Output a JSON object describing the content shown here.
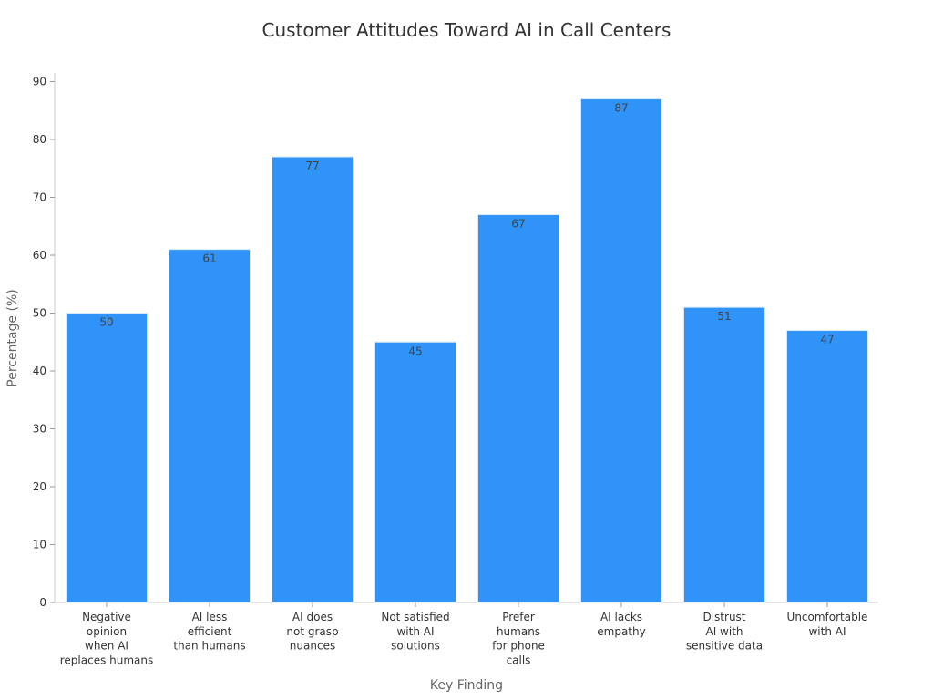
{
  "chart_data": {
    "type": "bar",
    "title": "Customer Attitudes Toward AI in Call Centers",
    "xlabel": "Key Finding",
    "ylabel": "Percentage (%)",
    "ylim": [
      0,
      90
    ],
    "yticks": [
      0,
      10,
      20,
      30,
      40,
      50,
      60,
      70,
      80,
      90
    ],
    "grid": false,
    "categories": [
      [
        "Negative",
        "opinion",
        "when AI",
        "replaces humans"
      ],
      [
        "AI less",
        "efficient",
        "than humans"
      ],
      [
        "AI does",
        "not grasp",
        "nuances"
      ],
      [
        "Not satisfied",
        "with AI",
        "solutions"
      ],
      [
        "Prefer",
        "humans",
        "for phone",
        "calls"
      ],
      [
        "AI lacks",
        "empathy"
      ],
      [
        "Distrust",
        "AI with",
        "sensitive data"
      ],
      [
        "Uncomfortable",
        "with AI"
      ]
    ],
    "values": [
      50,
      61,
      77,
      45,
      67,
      87,
      51,
      47
    ],
    "bar_color": "#2f93f8"
  }
}
